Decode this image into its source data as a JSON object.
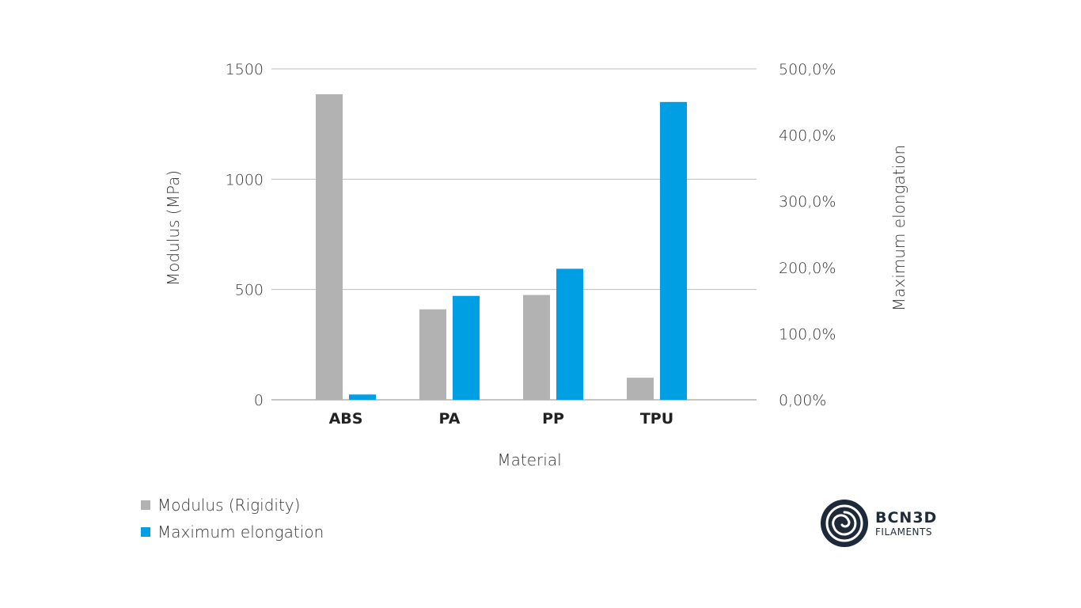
{
  "chart_data": {
    "type": "bar",
    "categories": [
      "ABS",
      "PA",
      "PP",
      "TPU"
    ],
    "series": [
      {
        "name": "Modulus (Rigidity)",
        "axis": "left",
        "color": "#b2b2b2",
        "values": [
          1385,
          410,
          475,
          100
        ]
      },
      {
        "name": "Maximum elongation",
        "axis": "right",
        "color": "#009fe3",
        "values": [
          8,
          157,
          198,
          450
        ]
      }
    ],
    "xlabel": "Material",
    "ylabel": "Modulus (MPa)",
    "y2label": "Maximum elongation",
    "ylim": [
      0,
      1500
    ],
    "y2lim": [
      0,
      500
    ],
    "yticks": [
      "0",
      "500",
      "1000",
      "1500"
    ],
    "y2ticks": [
      "0,00%",
      "100,0%",
      "200,0%",
      "300,0%",
      "400,0%",
      "500,0%"
    ],
    "y2tick_values": [
      0,
      100,
      200,
      300,
      400,
      500
    ],
    "grid": true,
    "legend": "bottom-left"
  },
  "logo": {
    "name": "BCN3D",
    "sub": "FILAMENTS"
  }
}
